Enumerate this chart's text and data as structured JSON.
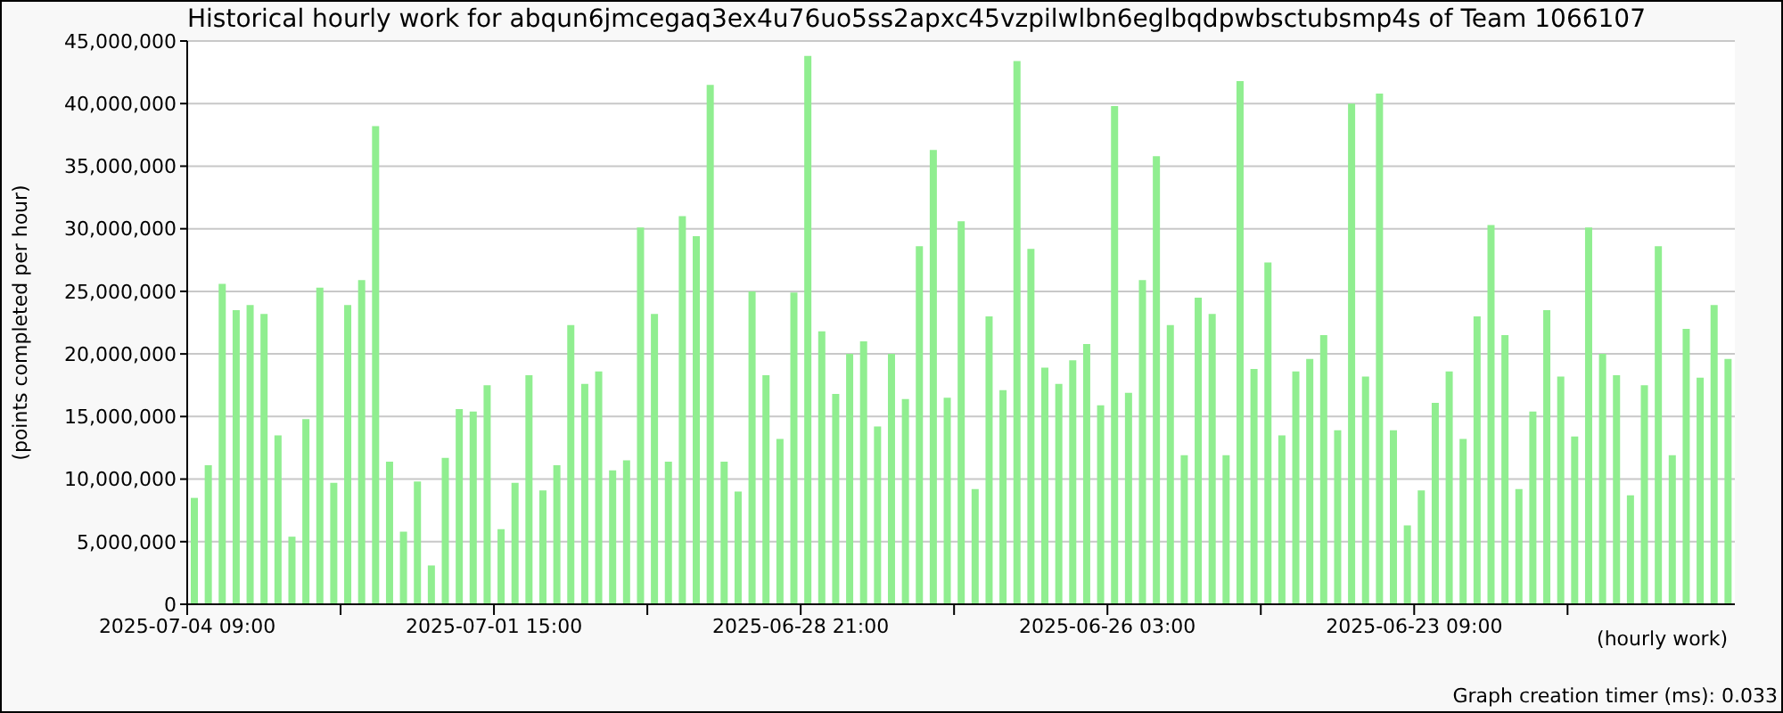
{
  "chart_data": {
    "type": "bar",
    "title": "Historical hourly work for abqun6jmcegaq3ex4u76uo5ss2apxc45vzpilwlbn6eglbqdpwbsctubsmp4s of Team 1066107",
    "xlabel": "(hourly work)",
    "ylabel": "(points completed per hour)",
    "annotations": [
      "Graph creation timer (ms): 0.033"
    ],
    "color": "#90ee90",
    "grid": "y",
    "x": [
      "2025-07-04T07:30",
      "2025-07-04T04:30",
      "2025-07-04T01:30",
      "2025-07-03T22:30",
      "2025-07-03T19:30",
      "2025-07-03T16:30",
      "2025-07-03T13:30",
      "2025-07-03T10:30",
      "2025-07-03T07:30",
      "2025-07-03T04:30",
      "2025-07-03T01:30",
      "2025-07-02T22:30",
      "2025-07-02T19:30",
      "2025-07-02T16:30",
      "2025-07-02T13:30",
      "2025-07-02T10:30",
      "2025-07-02T07:30",
      "2025-07-02T04:30",
      "2025-07-02T01:30",
      "2025-07-01T22:30",
      "2025-07-01T19:30",
      "2025-07-01T16:30",
      "2025-07-01T13:30",
      "2025-07-01T10:30",
      "2025-07-01T07:30",
      "2025-07-01T04:30",
      "2025-07-01T01:30",
      "2025-06-30T22:30",
      "2025-06-30T19:30",
      "2025-06-30T16:30",
      "2025-06-30T13:30",
      "2025-06-30T10:30",
      "2025-06-30T07:30",
      "2025-06-30T04:30",
      "2025-06-30T01:30",
      "2025-06-29T22:30",
      "2025-06-29T19:30",
      "2025-06-29T16:30",
      "2025-06-29T13:30",
      "2025-06-29T10:30",
      "2025-06-29T07:30",
      "2025-06-29T04:30",
      "2025-06-29T01:30",
      "2025-06-28T22:30",
      "2025-06-28T19:30",
      "2025-06-28T16:30",
      "2025-06-28T13:30",
      "2025-06-28T10:30",
      "2025-06-28T07:30",
      "2025-06-28T04:30",
      "2025-06-28T01:30",
      "2025-06-27T22:30",
      "2025-06-27T19:30",
      "2025-06-27T16:30",
      "2025-06-27T13:30",
      "2025-06-27T10:30",
      "2025-06-27T07:30",
      "2025-06-27T04:30",
      "2025-06-27T01:30",
      "2025-06-26T22:30",
      "2025-06-26T19:30",
      "2025-06-26T16:30",
      "2025-06-26T13:30",
      "2025-06-26T10:30",
      "2025-06-26T07:30",
      "2025-06-26T04:30",
      "2025-06-26T01:30",
      "2025-06-25T22:30",
      "2025-06-25T19:30",
      "2025-06-25T16:30",
      "2025-06-25T13:30",
      "2025-06-25T10:30",
      "2025-06-25T07:30",
      "2025-06-25T04:30",
      "2025-06-25T01:30",
      "2025-06-24T22:30",
      "2025-06-24T19:30",
      "2025-06-24T16:30",
      "2025-06-24T13:30",
      "2025-06-24T10:30",
      "2025-06-24T07:30",
      "2025-06-24T04:30",
      "2025-06-24T01:30",
      "2025-06-23T22:30",
      "2025-06-23T19:30",
      "2025-06-23T16:30",
      "2025-06-23T13:30",
      "2025-06-23T10:30",
      "2025-06-23T07:30",
      "2025-06-23T04:30",
      "2025-06-23T01:30",
      "2025-06-22T22:30",
      "2025-06-22T19:30",
      "2025-06-22T16:30",
      "2025-06-22T13:30",
      "2025-06-22T10:30",
      "2025-06-22T07:30",
      "2025-06-22T04:30",
      "2025-06-22T01:30",
      "2025-06-21T22:30",
      "2025-06-21T19:30",
      "2025-06-21T16:30",
      "2025-06-21T13:30",
      "2025-06-21T10:30",
      "2025-06-21T07:30",
      "2025-06-21T04:30",
      "2025-06-21T01:30",
      "2025-06-20T22:30",
      "2025-06-20T19:30",
      "2025-06-20T16:30",
      "2025-06-20T13:30"
    ],
    "values": [
      8500000,
      11100000,
      25600000,
      23500000,
      23900000,
      23200000,
      13500000,
      5400000,
      14800000,
      25300000,
      9700000,
      23900000,
      25900000,
      38200000,
      11400000,
      5800000,
      9800000,
      3100000,
      11700000,
      15600000,
      15400000,
      17500000,
      6000000,
      9700000,
      18300000,
      9100000,
      11100000,
      22300000,
      17600000,
      18600000,
      10700000,
      11500000,
      30100000,
      23200000,
      11400000,
      31000000,
      29400000,
      41500000,
      11400000,
      9000000,
      25000000,
      18300000,
      13200000,
      24900000,
      43800000,
      21800000,
      16800000,
      20000000,
      21000000,
      14200000,
      20000000,
      16400000,
      28600000,
      36300000,
      16500000,
      30600000,
      9200000,
      23000000,
      17100000,
      43400000,
      28400000,
      18900000,
      17600000,
      19500000,
      20800000,
      15900000,
      39800000,
      16900000,
      25900000,
      35800000,
      22300000,
      11900000,
      24500000,
      23200000,
      11900000,
      41800000,
      18800000,
      27300000,
      13500000,
      18600000,
      19600000,
      21500000,
      13900000,
      40000000,
      18200000,
      40800000,
      13900000,
      6300000,
      9100000,
      16100000,
      18600000,
      13200000,
      23000000,
      30300000,
      21500000,
      9200000,
      15400000,
      23500000,
      18200000,
      13400000,
      30100000,
      20000000,
      18300000,
      8700000,
      17500000,
      28600000,
      11900000,
      22000000,
      18100000,
      23900000,
      19600000
    ],
    "xlim": [
      "2025-07-04T09:00",
      "2025-06-20T12:00"
    ],
    "xticks": [
      {
        "value": "2025-07-04T09:00",
        "label": "2025-07-04 09:00"
      },
      {
        "value": "2025-07-03T00:00",
        "label": null
      },
      {
        "value": "2025-07-01T15:00",
        "label": "2025-07-01 15:00"
      },
      {
        "value": "2025-06-30T06:00",
        "label": null
      },
      {
        "value": "2025-06-28T21:00",
        "label": "2025-06-28 21:00"
      },
      {
        "value": "2025-06-27T12:00",
        "label": null
      },
      {
        "value": "2025-06-26T03:00",
        "label": "2025-06-26 03:00"
      },
      {
        "value": "2025-06-24T18:00",
        "label": null
      },
      {
        "value": "2025-06-23T09:00",
        "label": "2025-06-23 09:00"
      },
      {
        "value": "2025-06-22T00:00",
        "label": null
      }
    ],
    "ylim": [
      0,
      45000000
    ],
    "yticks": [
      0,
      {
        "value": 5000000,
        "label": "5,000,000"
      },
      {
        "value": 10000000,
        "label": "10,000,000"
      },
      {
        "value": 15000000,
        "label": "15,000,000"
      },
      {
        "value": 20000000,
        "label": "20,000,000"
      },
      {
        "value": 25000000,
        "label": "25,000,000"
      },
      {
        "value": 30000000,
        "label": "30,000,000"
      },
      {
        "value": 35000000,
        "label": "35,000,000"
      },
      {
        "value": 40000000,
        "label": "40,000,000"
      },
      {
        "value": 45000000,
        "label": "45,000,000"
      }
    ]
  }
}
